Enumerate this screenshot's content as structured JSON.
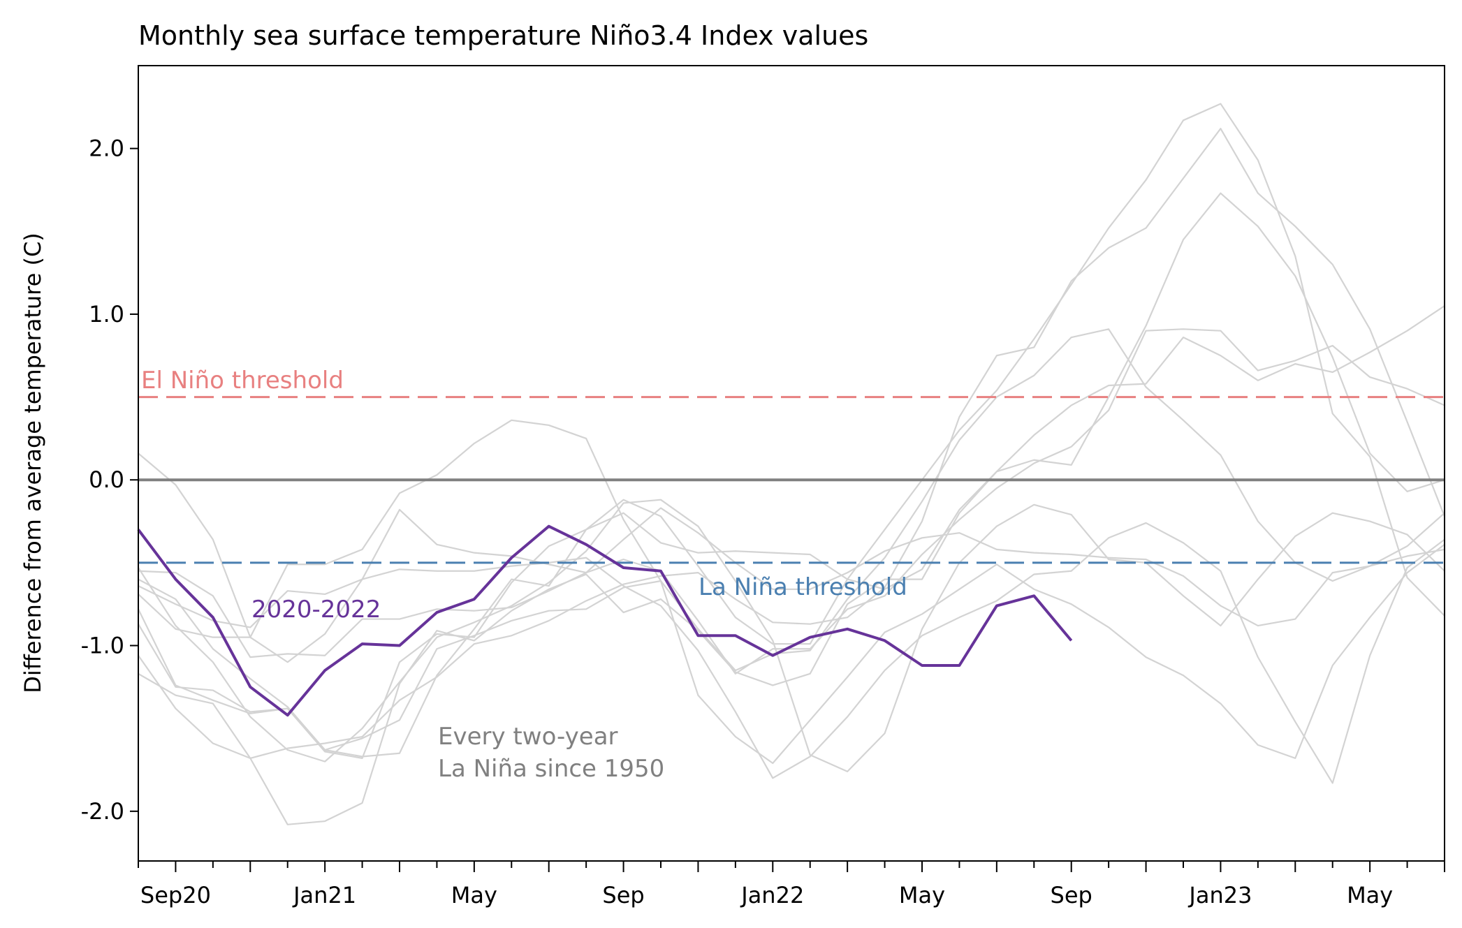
{
  "chart_data": {
    "type": "line",
    "title": "Monthly sea surface temperature Niño3.4 Index values",
    "xlabel": "",
    "ylabel": "Difference from average temperature (C)",
    "x_tick_labels": [
      {
        "index": 1,
        "label": "Sep20"
      },
      {
        "index": 5,
        "label": "Jan21"
      },
      {
        "index": 9,
        "label": "May"
      },
      {
        "index": 13,
        "label": "Sep"
      },
      {
        "index": 17,
        "label": "Jan22"
      },
      {
        "index": 21,
        "label": "May"
      },
      {
        "index": 25,
        "label": "Sep"
      },
      {
        "index": 29,
        "label": "Jan23"
      },
      {
        "index": 33,
        "label": "May"
      }
    ],
    "x_months_from_jun2020": [
      0,
      35
    ],
    "ylim": [
      -2.3,
      2.5
    ],
    "y_ticks": [
      {
        "value": 2.0,
        "label": "2.0"
      },
      {
        "value": 1.0,
        "label": "1.0"
      },
      {
        "value": 0.0,
        "label": "0.0"
      },
      {
        "value": -1.0,
        "label": "-1.0"
      },
      {
        "value": -2.0,
        "label": "-2.0"
      }
    ],
    "grid": false,
    "reference_lines": [
      {
        "name": "zero",
        "value": 0.0,
        "color": "#808080",
        "style": "solid"
      },
      {
        "name": "el-nino",
        "value": 0.5,
        "color": "#e88080",
        "style": "dashed"
      },
      {
        "name": "la-nina",
        "value": -0.5,
        "color": "#4a7fb0",
        "style": "dashed"
      }
    ],
    "annotations": {
      "el_nino": "El Niño threshold",
      "la_nina": "La Niña threshold",
      "current_series": "2020-2022",
      "background_line1": "Every two-year",
      "background_line2": "La Niña since 1950"
    },
    "colors": {
      "highlight": "#663399",
      "background": "#d3d3d3",
      "el_nino": "#e88080",
      "la_nina": "#4a7fb0",
      "zero": "#808080",
      "annotation_gray": "#808080"
    },
    "highlight_series": {
      "values": [
        -0.3,
        -0.6,
        -0.83,
        -1.25,
        -1.42,
        -1.15,
        -0.99,
        -1.0,
        -0.8,
        -0.72,
        -0.47,
        -0.28,
        -0.39,
        -0.53,
        -0.55,
        -0.94,
        -0.94,
        -1.06,
        -0.95,
        -0.9,
        -0.97,
        -1.12,
        -1.12,
        -0.76,
        -0.7,
        -0.97
      ]
    },
    "background_series": [
      {
        "values": [
          0.16,
          -0.03,
          -0.36,
          -0.95,
          -1.1,
          -0.93,
          -0.6,
          -0.18,
          -0.39,
          -0.44,
          -0.46,
          -0.51,
          -0.56,
          -0.48,
          -0.55,
          -0.85,
          -1.17,
          -1.02,
          -1.02,
          -0.78,
          -0.7,
          -0.45,
          -0.24,
          -0.05,
          0.1,
          0.2,
          0.42,
          0.9,
          0.91,
          0.9,
          0.66,
          0.72,
          0.81,
          0.62,
          0.55,
          0.45
        ]
      },
      {
        "values": [
          -0.69,
          -0.9,
          -0.95,
          -0.95,
          -0.51,
          -0.51,
          -0.42,
          -0.08,
          0.03,
          0.22,
          0.36,
          0.33,
          0.25,
          -0.24,
          -0.61,
          -0.9,
          -1.15,
          -1.05,
          -1.03,
          -0.72,
          -0.47,
          -0.13,
          0.24,
          0.5,
          0.63,
          0.86,
          0.91,
          0.56,
          0.36,
          0.15,
          -0.25,
          -0.5,
          -0.61,
          -0.52,
          -0.46,
          -0.42
        ]
      },
      {
        "values": [
          -0.6,
          -0.72,
          -1.02,
          -1.2,
          -1.37,
          -1.63,
          -1.67,
          -1.65,
          -1.18,
          -0.9,
          -0.6,
          -0.64,
          -0.3,
          -0.2,
          -0.38,
          -0.44,
          -0.43,
          -0.44,
          -0.45,
          -0.6,
          -0.66,
          -0.54,
          -0.18,
          0.05,
          0.27,
          0.45,
          0.57,
          0.58,
          0.86,
          0.75,
          0.6,
          0.7,
          0.65,
          0.77,
          0.9,
          1.05
        ]
      },
      {
        "values": [
          -0.87,
          -1.25,
          -1.27,
          -1.4,
          -1.38,
          -1.64,
          -1.68,
          -1.1,
          -0.93,
          -0.95,
          -0.62,
          -0.4,
          -0.3,
          -0.12,
          -0.22,
          -0.52,
          -0.83,
          -0.99,
          -0.99,
          -0.6,
          -0.3,
          0.0,
          0.3,
          0.54,
          0.85,
          1.18,
          1.52,
          1.81,
          2.17,
          2.27,
          1.93,
          1.35,
          0.4,
          0.14,
          -0.59,
          -0.82
        ]
      },
      {
        "values": [
          -1.06,
          -1.38,
          -1.59,
          -1.68,
          -1.62,
          -1.59,
          -1.55,
          -1.33,
          -1.19,
          -0.99,
          -0.94,
          -0.85,
          -0.73,
          -0.63,
          -0.58,
          -0.56,
          -0.72,
          -0.86,
          -0.87,
          -0.83,
          -0.65,
          -0.25,
          0.38,
          0.75,
          0.8,
          1.2,
          1.4,
          1.52,
          1.82,
          2.12,
          1.73,
          1.53,
          1.3,
          0.91,
          0.35,
          -0.22
        ]
      },
      {
        "values": [
          -1.17,
          -1.3,
          -1.35,
          -1.68,
          -2.08,
          -2.06,
          -1.95,
          -1.23,
          -0.91,
          -0.97,
          -0.79,
          -0.66,
          -0.57,
          -0.8,
          -0.72,
          -0.91,
          -1.16,
          -1.24,
          -1.17,
          -0.75,
          -0.6,
          -0.6,
          -0.2,
          0.05,
          0.12,
          0.09,
          0.5,
          0.93,
          1.45,
          1.73,
          1.53,
          1.23,
          0.74,
          0.16,
          -0.07,
          -0.0
        ]
      },
      {
        "values": [
          -0.55,
          -0.56,
          -0.7,
          -1.07,
          -1.05,
          -1.06,
          -0.84,
          -0.84,
          -0.78,
          -0.79,
          -0.77,
          -0.67,
          -0.56,
          -0.36,
          -0.17,
          -0.32,
          -0.5,
          -0.66,
          -0.66,
          -0.56,
          -0.43,
          -0.35,
          -0.32,
          -0.42,
          -0.44,
          -0.45,
          -0.47,
          -0.48,
          -0.58,
          -0.76,
          -0.88,
          -0.84,
          -0.56,
          -0.52,
          -0.4,
          -0.2
        ]
      },
      {
        "values": [
          -0.53,
          -0.88,
          -1.1,
          -1.43,
          -1.63,
          -1.7,
          -1.5,
          -1.22,
          -0.95,
          -0.86,
          -0.76,
          -0.62,
          -0.43,
          -0.14,
          -0.12,
          -0.28,
          -0.61,
          -0.97,
          -1.66,
          -1.76,
          -1.53,
          -0.9,
          -0.5,
          -0.28,
          -0.15,
          -0.21,
          -0.48,
          -0.5,
          -0.7,
          -0.88,
          -0.6,
          -0.34,
          -0.2,
          -0.25,
          -0.33,
          -0.55
        ]
      },
      {
        "values": [
          -0.64,
          -0.75,
          -0.85,
          -0.89,
          -0.67,
          -0.69,
          -0.6,
          -0.54,
          -0.55,
          -0.55,
          -0.52,
          -0.5,
          -0.47,
          -0.64,
          -0.76,
          -1.03,
          -1.4,
          -1.8,
          -1.67,
          -1.43,
          -1.15,
          -0.94,
          -0.83,
          -0.73,
          -0.57,
          -0.55,
          -0.35,
          -0.26,
          -0.38,
          -0.55,
          -1.07,
          -1.46,
          -1.83,
          -1.06,
          -0.53,
          -0.36
        ]
      },
      {
        "values": [
          -0.78,
          -1.24,
          -1.33,
          -1.41,
          -1.38,
          -1.63,
          -1.56,
          -1.45,
          -1.02,
          -0.94,
          -0.85,
          -0.79,
          -0.78,
          -0.65,
          -0.61,
          -1.3,
          -1.55,
          -1.71,
          -1.45,
          -1.19,
          -0.92,
          -0.81,
          -0.66,
          -0.51,
          -0.66,
          -0.75,
          -0.89,
          -1.07,
          -1.18,
          -1.35,
          -1.6,
          -1.68,
          -1.12,
          -0.83,
          -0.56,
          -0.39
        ]
      }
    ]
  }
}
